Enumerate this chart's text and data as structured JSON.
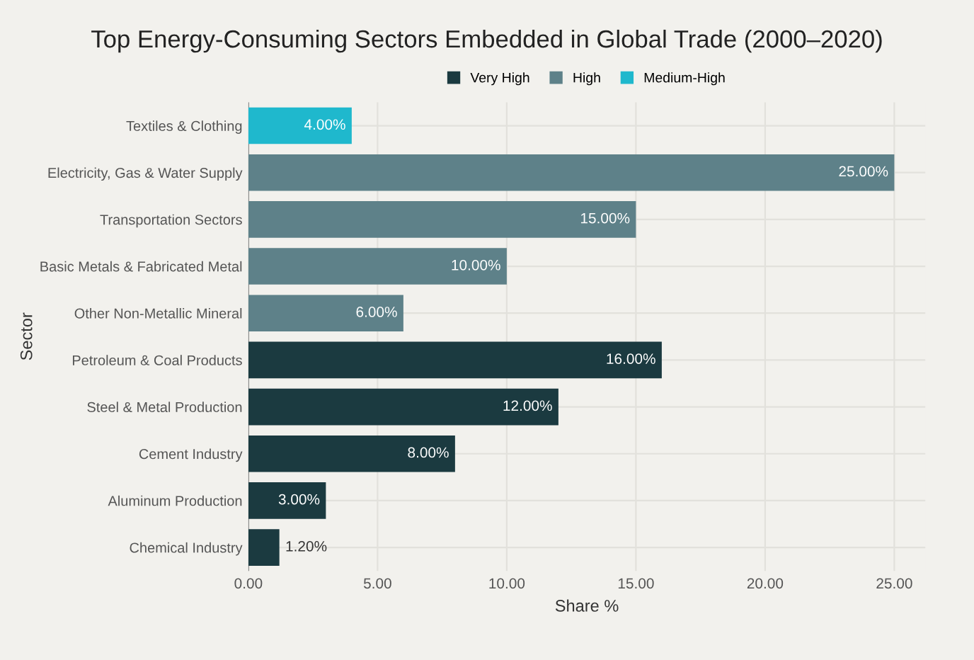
{
  "chart_data": {
    "type": "bar",
    "orientation": "horizontal",
    "title": "Top Energy-Consuming Sectors Embedded in Global Trade (2000–2020)",
    "xlabel": "Share %",
    "ylabel": "Sector",
    "categories": [
      "Textiles & Clothing",
      "Electricity, Gas & Water Supply",
      "Transportation Sectors",
      "Basic Metals & Fabricated Metal",
      "Other Non-Metallic Mineral",
      "Petroleum & Coal Products",
      "Steel & Metal Production",
      "Cement Industry",
      "Aluminum Production",
      "Chemical Industry"
    ],
    "series": [
      {
        "name": "Very High",
        "color": "#1b3a40",
        "values": [
          null,
          null,
          null,
          null,
          null,
          16,
          12,
          8,
          3,
          1.2
        ],
        "value_labels": [
          null,
          null,
          null,
          null,
          null,
          "16.00%",
          "12.00%",
          "8.00%",
          "3.00%",
          "1.20%"
        ]
      },
      {
        "name": "High",
        "color": "#5e8189",
        "values": [
          null,
          25,
          15,
          10,
          6,
          null,
          null,
          null,
          null,
          null
        ],
        "value_labels": [
          null,
          "25.00%",
          "15.00%",
          "10.00%",
          "6.00%",
          null,
          null,
          null,
          null,
          null
        ]
      },
      {
        "name": "Medium-High",
        "color": "#1fb8cd",
        "values": [
          4,
          null,
          null,
          null,
          null,
          null,
          null,
          null,
          null,
          null
        ],
        "value_labels": [
          "4.00%",
          null,
          null,
          null,
          null,
          null,
          null,
          null,
          null,
          null
        ]
      }
    ],
    "xlim": [
      0,
      26.2
    ],
    "xticks": [
      {
        "value": 0,
        "label": "0.00"
      },
      {
        "value": 5,
        "label": "5.00"
      },
      {
        "value": 10,
        "label": "10.00"
      },
      {
        "value": 15,
        "label": "15.00"
      },
      {
        "value": 20,
        "label": "20.00"
      },
      {
        "value": 25,
        "label": "25.00"
      }
    ],
    "grid": true,
    "legend": "top"
  }
}
